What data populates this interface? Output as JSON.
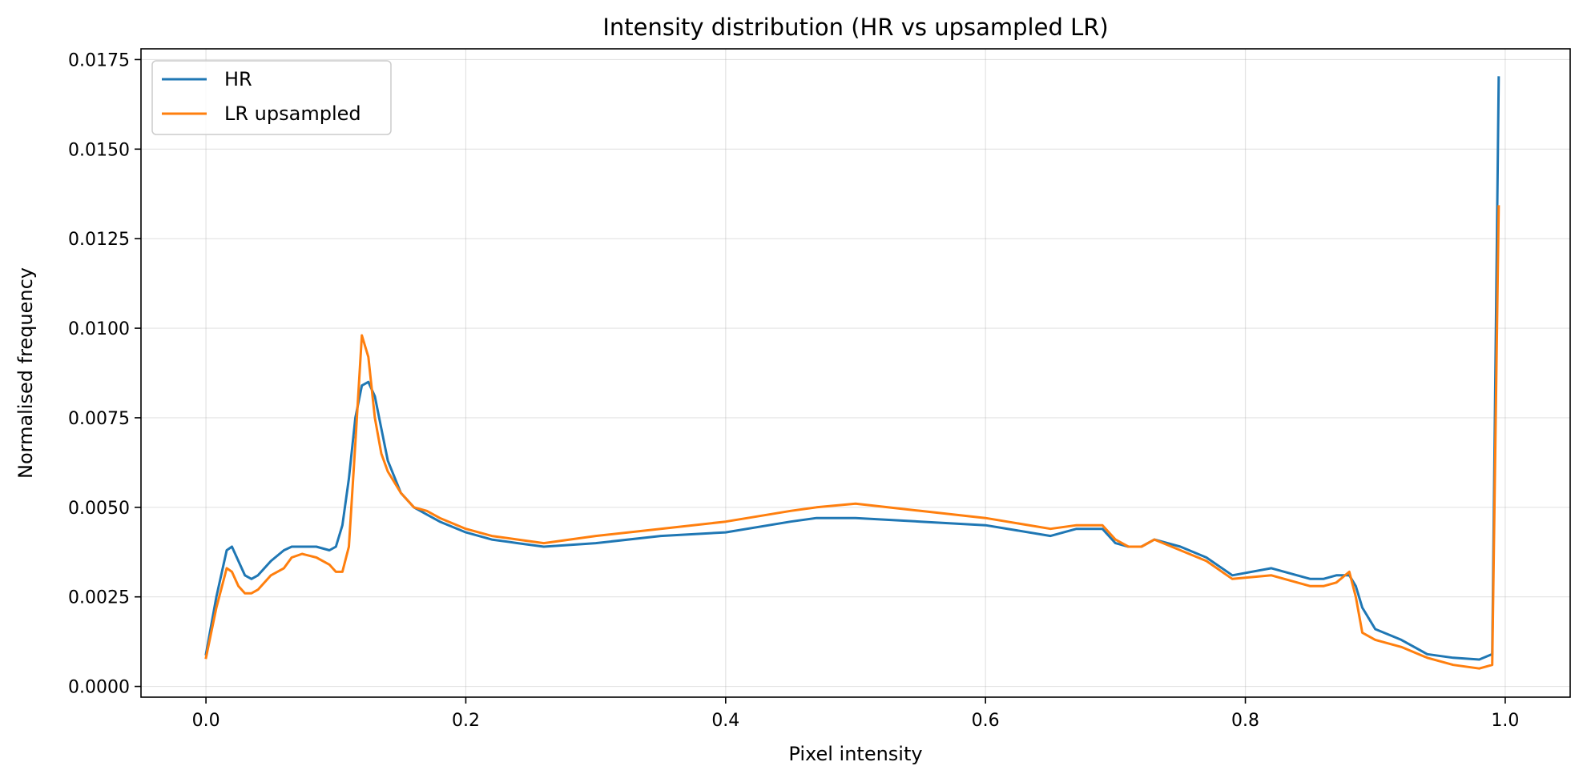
{
  "chart_data": {
    "type": "line",
    "title": "Intensity distribution (HR vs upsampled LR)",
    "xlabel": "Pixel intensity",
    "ylabel": "Normalised frequency",
    "xlim": [
      -0.05,
      1.05
    ],
    "ylim": [
      -0.0003,
      0.0178
    ],
    "xticks": [
      0.0,
      0.2,
      0.4,
      0.6,
      0.8,
      1.0
    ],
    "xtick_labels": [
      "0.0",
      "0.2",
      "0.4",
      "0.6",
      "0.8",
      "1.0"
    ],
    "yticks": [
      0.0,
      0.0025,
      0.005,
      0.0075,
      0.01,
      0.0125,
      0.015,
      0.0175
    ],
    "ytick_labels": [
      "0.0000",
      "0.0025",
      "0.0050",
      "0.0075",
      "0.0100",
      "0.0125",
      "0.0150",
      "0.0175"
    ],
    "grid": true,
    "legend_position": "top-left",
    "series": [
      {
        "name": "HR",
        "color": "#1f77b4",
        "x": [
          0.0,
          0.008,
          0.016,
          0.02,
          0.025,
          0.03,
          0.035,
          0.04,
          0.05,
          0.06,
          0.066,
          0.074,
          0.085,
          0.095,
          0.1,
          0.105,
          0.11,
          0.115,
          0.12,
          0.125,
          0.13,
          0.135,
          0.14,
          0.15,
          0.16,
          0.17,
          0.18,
          0.2,
          0.22,
          0.24,
          0.26,
          0.3,
          0.35,
          0.4,
          0.45,
          0.47,
          0.5,
          0.55,
          0.6,
          0.65,
          0.67,
          0.68,
          0.69,
          0.7,
          0.71,
          0.72,
          0.73,
          0.75,
          0.77,
          0.79,
          0.82,
          0.85,
          0.86,
          0.87,
          0.88,
          0.885,
          0.89,
          0.9,
          0.92,
          0.94,
          0.96,
          0.98,
          0.99,
          0.995
        ],
        "y": [
          0.0009,
          0.0025,
          0.0038,
          0.0039,
          0.0035,
          0.0031,
          0.003,
          0.0031,
          0.0035,
          0.0038,
          0.0039,
          0.0039,
          0.0039,
          0.0038,
          0.0039,
          0.0045,
          0.0058,
          0.0075,
          0.0084,
          0.0085,
          0.0081,
          0.0072,
          0.0063,
          0.0054,
          0.005,
          0.0048,
          0.0046,
          0.0043,
          0.0041,
          0.004,
          0.0039,
          0.004,
          0.0042,
          0.0043,
          0.0046,
          0.0047,
          0.0047,
          0.0046,
          0.0045,
          0.0042,
          0.0044,
          0.0044,
          0.0044,
          0.004,
          0.0039,
          0.0039,
          0.0041,
          0.0039,
          0.0036,
          0.0031,
          0.0033,
          0.003,
          0.003,
          0.0031,
          0.0031,
          0.0028,
          0.0022,
          0.0016,
          0.0013,
          0.0009,
          0.0008,
          0.00075,
          0.0009,
          0.017
        ]
      },
      {
        "name": "LR upsampled",
        "color": "#ff7f0e",
        "x": [
          0.0,
          0.008,
          0.016,
          0.02,
          0.025,
          0.03,
          0.035,
          0.04,
          0.05,
          0.06,
          0.066,
          0.074,
          0.085,
          0.095,
          0.1,
          0.105,
          0.11,
          0.115,
          0.12,
          0.125,
          0.13,
          0.135,
          0.14,
          0.15,
          0.16,
          0.17,
          0.18,
          0.2,
          0.22,
          0.24,
          0.26,
          0.3,
          0.35,
          0.4,
          0.45,
          0.47,
          0.5,
          0.55,
          0.6,
          0.65,
          0.67,
          0.68,
          0.69,
          0.7,
          0.71,
          0.72,
          0.73,
          0.75,
          0.77,
          0.79,
          0.82,
          0.85,
          0.86,
          0.87,
          0.88,
          0.885,
          0.89,
          0.9,
          0.92,
          0.94,
          0.96,
          0.98,
          0.99,
          0.995
        ],
        "y": [
          0.0008,
          0.0022,
          0.0033,
          0.0032,
          0.0028,
          0.0026,
          0.0026,
          0.0027,
          0.0031,
          0.0033,
          0.0036,
          0.0037,
          0.0036,
          0.0034,
          0.0032,
          0.0032,
          0.0039,
          0.0068,
          0.0098,
          0.0092,
          0.0075,
          0.0065,
          0.006,
          0.0054,
          0.005,
          0.0049,
          0.0047,
          0.0044,
          0.0042,
          0.0041,
          0.004,
          0.0042,
          0.0044,
          0.0046,
          0.0049,
          0.005,
          0.0051,
          0.0049,
          0.0047,
          0.0044,
          0.0045,
          0.0045,
          0.0045,
          0.0041,
          0.0039,
          0.0039,
          0.0041,
          0.0038,
          0.0035,
          0.003,
          0.0031,
          0.0028,
          0.0028,
          0.0029,
          0.0032,
          0.0025,
          0.0015,
          0.0013,
          0.0011,
          0.0008,
          0.0006,
          0.0005,
          0.0006,
          0.0134
        ]
      }
    ]
  }
}
